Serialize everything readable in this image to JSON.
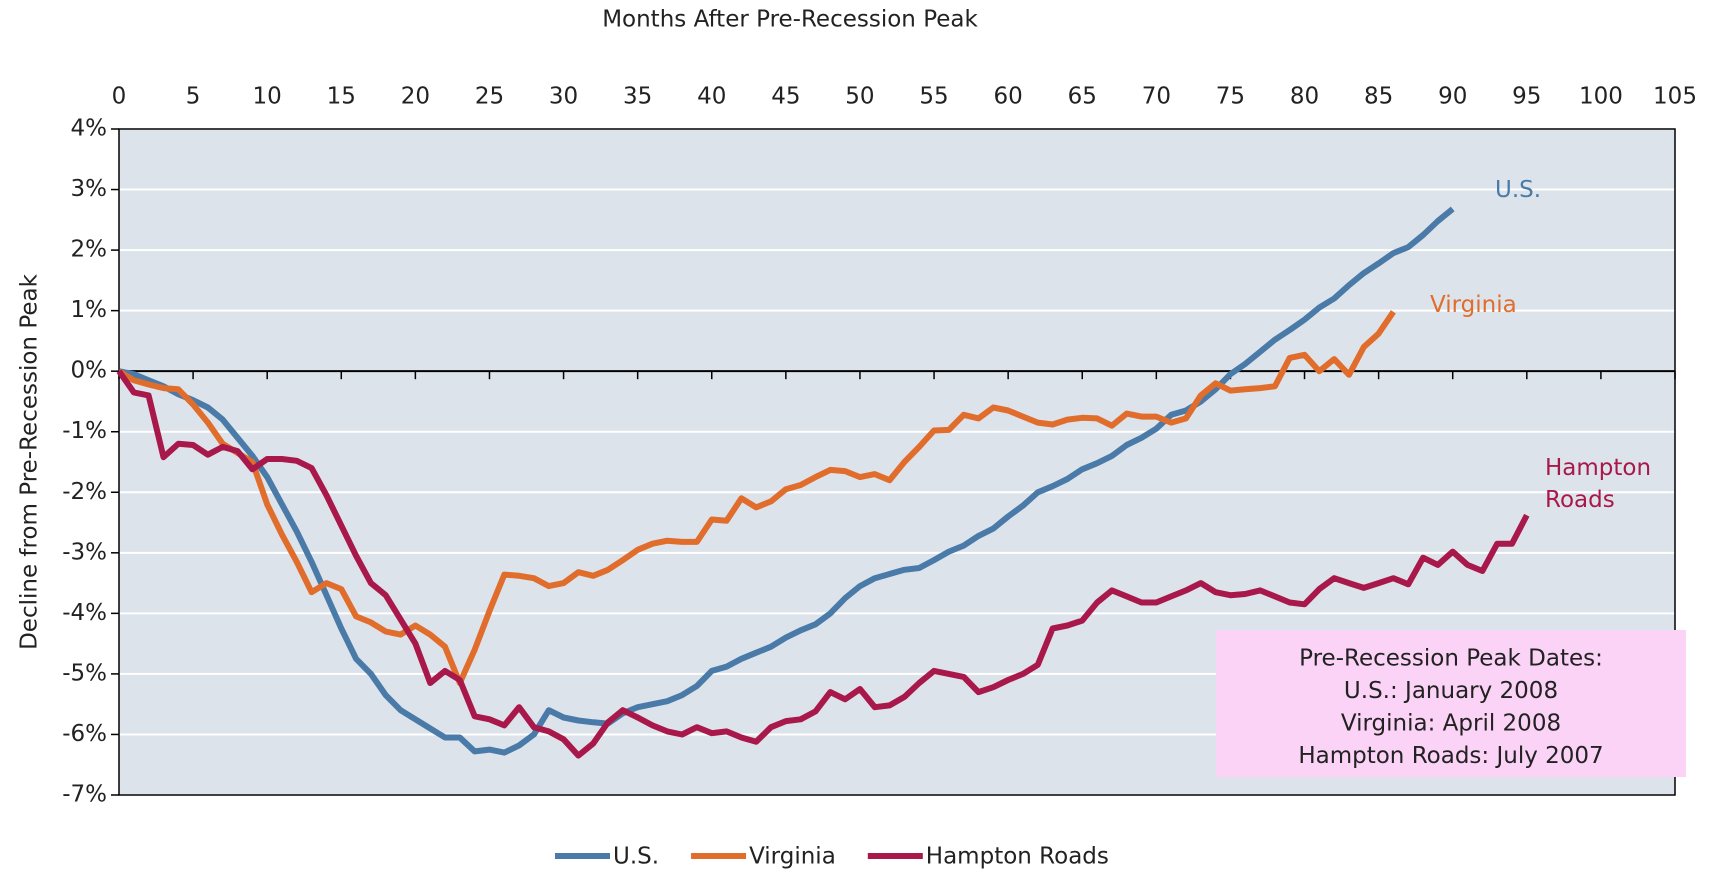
{
  "chart_data": {
    "type": "line",
    "xlabel": "Months After Pre-Recession Peak",
    "ylabel": "Decline from Pre-Recession Peak",
    "x": [
      0,
      1,
      2,
      3,
      4,
      5,
      6,
      7,
      8,
      9,
      10,
      11,
      12,
      13,
      14,
      15,
      16,
      17,
      18,
      19,
      20,
      21,
      22,
      23,
      24,
      25,
      26,
      27,
      28,
      29,
      30,
      31,
      32,
      33,
      34,
      35,
      36,
      37,
      38,
      39,
      40,
      41,
      42,
      43,
      44,
      45,
      46,
      47,
      48,
      49,
      50,
      51,
      52,
      53,
      54,
      55,
      56,
      57,
      58,
      59,
      60,
      61,
      62,
      63,
      64,
      65,
      66,
      67,
      68,
      69,
      70,
      71,
      72,
      73,
      74,
      75,
      76,
      77,
      78,
      79,
      80,
      81,
      82,
      83,
      84,
      85,
      86,
      87,
      88,
      89,
      90,
      91,
      92,
      93,
      94,
      95
    ],
    "xlim": [
      0,
      105
    ],
    "xticks": [
      0,
      5,
      10,
      15,
      20,
      25,
      30,
      35,
      40,
      45,
      50,
      55,
      60,
      65,
      70,
      75,
      80,
      85,
      90,
      95,
      100,
      105
    ],
    "ylim": [
      -7,
      4
    ],
    "yticks": [
      {
        "value": -7,
        "label": "-7%"
      },
      {
        "value": -6,
        "label": "-6%"
      },
      {
        "value": -5,
        "label": "-5%"
      },
      {
        "value": -4,
        "label": "-4%"
      },
      {
        "value": -3,
        "label": "-3%"
      },
      {
        "value": -2,
        "label": "-2%"
      },
      {
        "value": -1,
        "label": "-1%"
      },
      {
        "value": 0,
        "label": "0%"
      },
      {
        "value": 1,
        "label": "1%"
      },
      {
        "value": 2,
        "label": "2%"
      },
      {
        "value": 3,
        "label": "3%"
      },
      {
        "value": 4,
        "label": "4%"
      }
    ],
    "grid": true,
    "legend": "bottom",
    "series": [
      {
        "name": "U.S.",
        "color": "#4a7aa8",
        "values": [
          0,
          -0.05,
          -0.15,
          -0.25,
          -0.38,
          -0.48,
          -0.6,
          -0.8,
          -1.1,
          -1.4,
          -1.75,
          -2.2,
          -2.65,
          -3.15,
          -3.7,
          -4.25,
          -4.75,
          -5.0,
          -5.35,
          -5.6,
          -5.75,
          -5.9,
          -6.05,
          -6.05,
          -6.28,
          -6.25,
          -6.3,
          -6.18,
          -6.0,
          -5.6,
          -5.72,
          -5.77,
          -5.8,
          -5.82,
          -5.65,
          -5.55,
          -5.5,
          -5.45,
          -5.35,
          -5.2,
          -4.95,
          -4.88,
          -4.75,
          -4.65,
          -4.55,
          -4.4,
          -4.28,
          -4.18,
          -4.0,
          -3.75,
          -3.55,
          -3.42,
          -3.35,
          -3.28,
          -3.25,
          -3.12,
          -2.98,
          -2.88,
          -2.72,
          -2.6,
          -2.4,
          -2.22,
          -2.0,
          -1.9,
          -1.78,
          -1.62,
          -1.52,
          -1.4,
          -1.22,
          -1.1,
          -0.95,
          -0.72,
          -0.65,
          -0.5,
          -0.3,
          -0.05,
          0.12,
          0.32,
          0.52,
          0.68,
          0.85,
          1.05,
          1.2,
          1.42,
          1.62,
          1.78,
          1.95,
          2.05,
          2.25,
          2.48,
          2.68,
          null,
          null,
          null,
          null,
          null
        ]
      },
      {
        "name": "Virginia",
        "color": "#e06d2c",
        "values": [
          0,
          -0.15,
          -0.22,
          -0.28,
          -0.3,
          -0.55,
          -0.85,
          -1.2,
          -1.35,
          -1.5,
          -2.2,
          -2.7,
          -3.15,
          -3.65,
          -3.5,
          -3.6,
          -4.05,
          -4.15,
          -4.3,
          -4.35,
          -4.2,
          -4.35,
          -4.55,
          -5.15,
          -4.6,
          -3.96,
          -3.36,
          -3.38,
          -3.42,
          -3.55,
          -3.5,
          -3.32,
          -3.38,
          -3.28,
          -3.12,
          -2.95,
          -2.85,
          -2.8,
          -2.82,
          -2.82,
          -2.45,
          -2.47,
          -2.1,
          -2.25,
          -2.15,
          -1.95,
          -1.88,
          -1.75,
          -1.63,
          -1.65,
          -1.75,
          -1.7,
          -1.8,
          -1.5,
          -1.25,
          -0.98,
          -0.97,
          -0.72,
          -0.78,
          -0.6,
          -0.65,
          -0.75,
          -0.85,
          -0.88,
          -0.8,
          -0.77,
          -0.78,
          -0.9,
          -0.7,
          -0.75,
          -0.75,
          -0.85,
          -0.78,
          -0.4,
          -0.2,
          -0.32,
          -0.3,
          -0.28,
          -0.25,
          0.22,
          0.27,
          0.0,
          0.2,
          -0.06,
          0.4,
          0.62,
          0.98,
          null,
          null,
          null,
          null,
          null,
          null,
          null,
          null,
          null
        ]
      },
      {
        "name": "Hampton Roads",
        "color": "#a8184a",
        "values": [
          0,
          -0.35,
          -0.4,
          -1.42,
          -1.2,
          -1.22,
          -1.38,
          -1.25,
          -1.32,
          -1.62,
          -1.45,
          -1.45,
          -1.48,
          -1.6,
          -2.05,
          -2.55,
          -3.05,
          -3.5,
          -3.7,
          -4.1,
          -4.5,
          -5.15,
          -4.95,
          -5.1,
          -5.7,
          -5.75,
          -5.85,
          -5.55,
          -5.88,
          -5.95,
          -6.08,
          -6.35,
          -6.15,
          -5.8,
          -5.6,
          -5.72,
          -5.85,
          -5.95,
          -6.0,
          -5.88,
          -5.98,
          -5.95,
          -6.05,
          -6.12,
          -5.88,
          -5.78,
          -5.75,
          -5.62,
          -5.3,
          -5.42,
          -5.25,
          -5.55,
          -5.52,
          -5.38,
          -5.15,
          -4.95,
          -5.0,
          -5.05,
          -5.3,
          -5.22,
          -5.1,
          -5.0,
          -4.85,
          -4.25,
          -4.2,
          -4.12,
          -3.82,
          -3.62,
          -3.72,
          -3.82,
          -3.82,
          -3.72,
          -3.62,
          -3.5,
          -3.65,
          -3.7,
          -3.68,
          -3.62,
          -3.72,
          -3.82,
          -3.85,
          -3.6,
          -3.42,
          -3.5,
          -3.58,
          -3.5,
          -3.42,
          -3.52,
          -3.08,
          -3.2,
          -2.98,
          -3.2,
          -3.3,
          -2.85,
          -2.85,
          -2.38
        ]
      }
    ],
    "annotation": [
      "Pre-Recession Peak Dates:",
      "U.S.: January 2008",
      "Virginia: April 2008",
      "Hampton Roads: July 2007"
    ]
  }
}
